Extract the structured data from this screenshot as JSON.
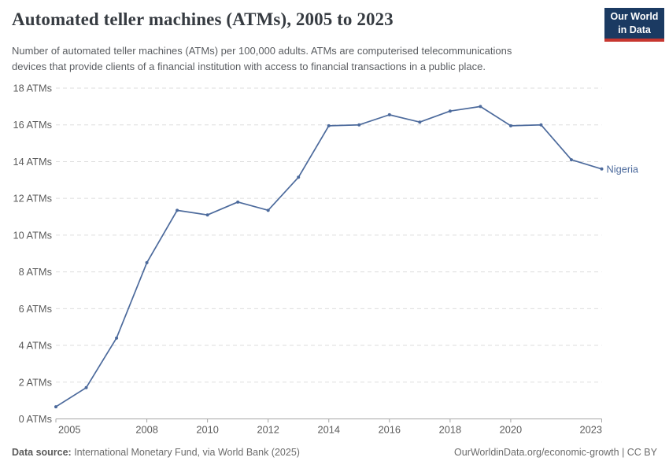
{
  "header": {
    "title": "Automated teller machines (ATMs), 2005 to 2023",
    "subtitle_lines": [
      "Number of automated teller machines (ATMs) per 100,000 adults. ATMs are computerised telecommunications",
      "devices that provide clients of a financial institution with access to financial transactions in a public place."
    ],
    "logo": {
      "line1": "Our World",
      "line2": "in Data",
      "bg_color": "#1b3a62",
      "accent_color": "#c7362f"
    }
  },
  "chart_data": {
    "type": "line",
    "title": "Automated teller machines (ATMs), 2005 to 2023",
    "x": [
      2005,
      2006,
      2007,
      2008,
      2009,
      2010,
      2011,
      2012,
      2013,
      2014,
      2015,
      2016,
      2017,
      2018,
      2019,
      2020,
      2021,
      2022,
      2023
    ],
    "series": [
      {
        "name": "Nigeria",
        "color": "#4c6a9c",
        "values": [
          0.66,
          1.7,
          4.4,
          8.5,
          11.35,
          11.1,
          11.8,
          11.35,
          13.15,
          15.95,
          16.0,
          16.55,
          16.15,
          16.75,
          17.0,
          15.95,
          16.0,
          14.1,
          13.6
        ]
      }
    ],
    "xlim": [
      2005,
      2023
    ],
    "ylim": [
      0,
      18
    ],
    "xtick_labels": [
      "2005",
      "2008",
      "2010",
      "2012",
      "2014",
      "2016",
      "2018",
      "2020",
      "2023"
    ],
    "ytick_step": 2,
    "ytick_suffix": " ATMs",
    "grid": "horizontal-dashed",
    "legend_position": "end-of-line-label",
    "colors": {
      "gridline": "#dddddd",
      "axis": "#a5a5a5",
      "tick_label": "#5b5b5b"
    }
  },
  "footer": {
    "datasource_label": "Data source:",
    "datasource_value": " International Monetary Fund, via World Bank (2025)",
    "attribution": "OurWorldinData.org/economic-growth | CC BY"
  }
}
